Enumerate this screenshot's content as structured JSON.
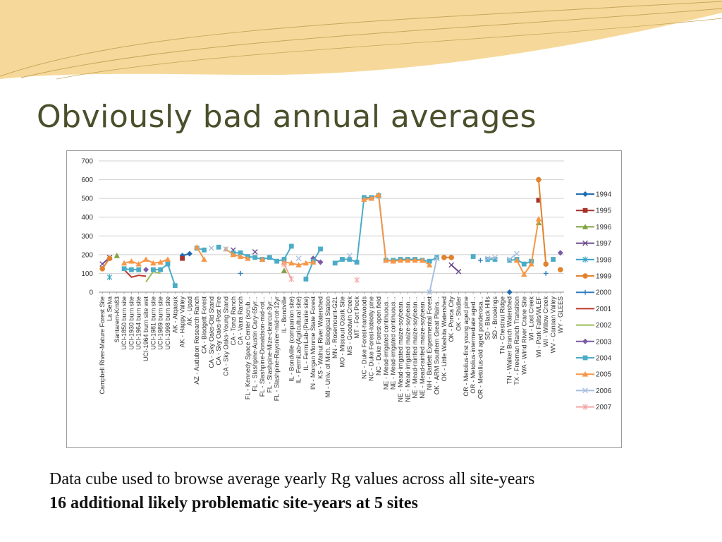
{
  "slide": {
    "title": "Obviously bad annual averages",
    "caption_line1": "Data cube used to browse average yearly Rg values across all site-years",
    "caption_line2": "16 additional likely problematic site-years at 5 sites"
  },
  "theme": {
    "title_color": "#4b4f2b",
    "deco_fill": "#f6d99a",
    "deco_line": "#c9a65a"
  },
  "chart_data": {
    "type": "line",
    "ylim": [
      0,
      700
    ],
    "yticks": [
      0,
      100,
      200,
      300,
      400,
      500,
      600,
      700
    ],
    "grid": true,
    "legend_position": "right",
    "categories": [
      "Campbell River-Mature Forest Site",
      "La Selva",
      "Santarem-Km83",
      "UCI-1850 burn site",
      "UCI-1930 burn site",
      "UCI-1964 burn site",
      "UCI-1964 burn site wet",
      "UCI-1981 burn site",
      "UCI-1989 burn site",
      "UCI-1998 burn site",
      "AK - Atqasuk",
      "AK - Happy Valley",
      "AK - Upad",
      "AZ - Audubon Research Ranch",
      "CA - Blodgett Forest",
      "CA - Sky Oaks-Old Stand",
      "CA - Sky Oaks-Post Fire",
      "CA - Sky Oaks-Young Stand",
      "CA - Tonzi Ranch",
      "CA - Vaira Ranch",
      "FL - Kennedy Space Center (scrub...",
      "FL - Slashpine-Austin Cary-65yr...",
      "FL - Slashpine-Donaldson-mid-rot...",
      "FL - Slashpine-Mize-clearcut-3yr...",
      "FL - Slashpine-Rayonier-mid-rot-12yr",
      "IL - Bondville",
      "IL - Bondville (companion site)",
      "IL - FermiLab-(Agricultural site)",
      "IL - FermiLab-(Prairie site)",
      "IN - Morgan Monroe State Forest",
      "KS - Walnut River Watershed",
      "MI - Univ. of Mich. Biological Station",
      "MN - Rosemount-G21",
      "MO - Missouri Ozark Site",
      "MS - Goodwin Creek",
      "MT - Fort Peck",
      "NC - Duke Forest-hardwoods",
      "NC - Duke Forest-loblolly pine",
      "NC - Duke Forest-open field",
      "NE - Mead-irrigated continuous...",
      "NE - Mead-irrigated continuous...",
      "NE - Mead-irrigated maize-soybean...",
      "NE - Mead-irrigated maize-soybean...",
      "NE - Mead-rainfed maize-soybean...",
      "NE - Mead-rainfed maize-soybean...",
      "NH - Bartlett Experimental Forest",
      "OK - ARM Southern Great Plains...",
      "OK - Little Washita Watershed",
      "OK - Ponca City",
      "OK - Shidler",
      "OR - Metolius-first young aged pine",
      "OR - Metolius-intermediate aged...",
      "OR - Metolius-old aged ponderosa...",
      "SD - Black Hills",
      "SD - Brookings",
      "TN - Chestnut Ridge",
      "TN - Walker Branch Watershed",
      "TX - Freeman Ranch Transition",
      "WA - Wind River Crane Site",
      "WI - Lost Creek",
      "WI - Park Falls/WLEF",
      "WI - Willow Creek",
      "WV - Canaan Valley",
      "WY - GLEES"
    ],
    "series": [
      {
        "name": "1994",
        "color": "#1f6cb0",
        "marker": "diamond",
        "values": [
          null,
          null,
          null,
          null,
          null,
          null,
          null,
          null,
          null,
          null,
          null,
          195,
          205,
          null,
          null,
          null,
          null,
          null,
          null,
          null,
          null,
          null,
          null,
          null,
          null,
          null,
          null,
          null,
          null,
          null,
          null,
          null,
          null,
          null,
          null,
          null,
          null,
          null,
          null,
          null,
          null,
          null,
          null,
          null,
          null,
          null,
          null,
          null,
          null,
          null,
          null,
          null,
          null,
          null,
          null,
          null,
          0,
          null,
          null,
          null,
          null,
          null,
          null,
          null
        ]
      },
      {
        "name": "1995",
        "color": "#a6322e",
        "marker": "square",
        "values": [
          null,
          null,
          null,
          null,
          null,
          null,
          null,
          null,
          null,
          null,
          null,
          180,
          null,
          null,
          null,
          null,
          null,
          null,
          null,
          null,
          null,
          null,
          null,
          null,
          null,
          null,
          null,
          null,
          null,
          null,
          null,
          null,
          null,
          null,
          null,
          null,
          null,
          null,
          null,
          null,
          null,
          null,
          null,
          null,
          null,
          null,
          null,
          null,
          null,
          null,
          null,
          null,
          null,
          null,
          null,
          null,
          null,
          null,
          null,
          null,
          490,
          null,
          null,
          null
        ]
      },
      {
        "name": "1996",
        "color": "#7fa33f",
        "marker": "triangle",
        "values": [
          null,
          null,
          195,
          null,
          null,
          null,
          null,
          null,
          null,
          null,
          null,
          null,
          null,
          null,
          null,
          null,
          null,
          null,
          null,
          null,
          null,
          null,
          null,
          null,
          null,
          115,
          null,
          null,
          null,
          null,
          null,
          null,
          null,
          null,
          null,
          null,
          null,
          null,
          null,
          null,
          null,
          null,
          null,
          null,
          null,
          null,
          null,
          null,
          null,
          null,
          null,
          null,
          null,
          null,
          null,
          null,
          null,
          null,
          null,
          null,
          370,
          null,
          null,
          null
        ]
      },
      {
        "name": "1997",
        "color": "#6b4a8a",
        "marker": "x",
        "values": [
          150,
          185,
          null,
          null,
          null,
          null,
          null,
          null,
          null,
          null,
          null,
          null,
          null,
          null,
          null,
          null,
          null,
          null,
          225,
          null,
          null,
          215,
          null,
          null,
          null,
          null,
          null,
          null,
          null,
          null,
          null,
          null,
          null,
          null,
          null,
          null,
          null,
          null,
          null,
          null,
          null,
          null,
          null,
          null,
          null,
          null,
          null,
          null,
          145,
          110,
          null,
          null,
          null,
          null,
          null,
          null,
          null,
          null,
          null,
          null,
          null,
          null,
          null,
          null
        ]
      },
      {
        "name": "1998",
        "color": "#3aa3c4",
        "marker": "star",
        "values": [
          null,
          80,
          null,
          null,
          null,
          null,
          null,
          null,
          null,
          null,
          null,
          null,
          null,
          null,
          null,
          null,
          null,
          null,
          null,
          null,
          null,
          null,
          null,
          null,
          null,
          null,
          null,
          null,
          null,
          null,
          null,
          null,
          null,
          null,
          null,
          null,
          null,
          null,
          null,
          null,
          null,
          null,
          null,
          null,
          null,
          null,
          null,
          null,
          null,
          null,
          null,
          null,
          null,
          null,
          null,
          null,
          null,
          null,
          null,
          null,
          null,
          null,
          null,
          null
        ]
      },
      {
        "name": "1999",
        "color": "#e1832e",
        "marker": "circle",
        "values": [
          125,
          180,
          null,
          null,
          null,
          null,
          null,
          null,
          null,
          null,
          null,
          null,
          null,
          null,
          null,
          null,
          null,
          null,
          null,
          null,
          null,
          null,
          null,
          null,
          null,
          null,
          null,
          null,
          null,
          null,
          null,
          null,
          null,
          null,
          null,
          null,
          null,
          null,
          null,
          null,
          null,
          null,
          null,
          null,
          null,
          null,
          null,
          185,
          185,
          null,
          null,
          null,
          null,
          null,
          null,
          null,
          null,
          null,
          null,
          null,
          600,
          150,
          null,
          120
        ]
      },
      {
        "name": "2000",
        "color": "#2f7dc1",
        "marker": "plus",
        "values": [
          null,
          null,
          null,
          null,
          null,
          null,
          null,
          null,
          null,
          null,
          null,
          null,
          null,
          null,
          null,
          null,
          null,
          null,
          null,
          100,
          null,
          null,
          null,
          null,
          null,
          null,
          null,
          null,
          null,
          null,
          null,
          null,
          null,
          null,
          null,
          null,
          null,
          null,
          null,
          null,
          null,
          null,
          null,
          null,
          null,
          null,
          null,
          null,
          null,
          null,
          null,
          null,
          170,
          null,
          null,
          null,
          null,
          null,
          null,
          null,
          null,
          100,
          null,
          null
        ]
      },
      {
        "name": "2001",
        "color": "#c0392b",
        "marker": "none",
        "values": [
          null,
          null,
          null,
          120,
          80,
          90,
          85,
          null,
          null,
          null,
          null,
          null,
          null,
          null,
          null,
          null,
          null,
          null,
          null,
          null,
          null,
          null,
          null,
          null,
          null,
          null,
          null,
          null,
          null,
          null,
          null,
          null,
          null,
          null,
          null,
          null,
          null,
          null,
          null,
          null,
          null,
          null,
          null,
          null,
          null,
          null,
          null,
          null,
          null,
          null,
          null,
          null,
          null,
          null,
          null,
          null,
          null,
          null,
          null,
          null,
          null,
          null,
          null,
          null
        ]
      },
      {
        "name": "2002",
        "color": "#9bbb59",
        "marker": "none",
        "values": [
          80,
          null,
          null,
          null,
          null,
          null,
          55,
          110,
          100,
          null,
          null,
          null,
          null,
          null,
          null,
          null,
          null,
          null,
          null,
          null,
          null,
          null,
          null,
          null,
          null,
          null,
          null,
          null,
          null,
          null,
          null,
          null,
          null,
          null,
          null,
          null,
          null,
          null,
          null,
          null,
          null,
          null,
          null,
          null,
          null,
          null,
          95,
          null,
          null,
          null,
          null,
          null,
          null,
          null,
          null,
          null,
          null,
          null,
          null,
          185,
          null,
          null,
          null,
          200
        ]
      },
      {
        "name": "2003",
        "color": "#7b5aa6",
        "marker": "diamond",
        "values": [
          null,
          null,
          null,
          null,
          null,
          null,
          120,
          null,
          null,
          null,
          null,
          null,
          null,
          null,
          null,
          null,
          null,
          null,
          null,
          null,
          null,
          null,
          null,
          null,
          null,
          null,
          null,
          null,
          null,
          180,
          160,
          null,
          null,
          null,
          null,
          null,
          null,
          null,
          null,
          null,
          null,
          null,
          null,
          null,
          null,
          null,
          null,
          null,
          null,
          null,
          null,
          null,
          null,
          null,
          null,
          null,
          null,
          null,
          null,
          null,
          null,
          null,
          null,
          210
        ]
      },
      {
        "name": "2004",
        "color": "#4bacc6",
        "marker": "square",
        "values": [
          null,
          null,
          null,
          125,
          120,
          120,
          null,
          120,
          120,
          150,
          35,
          null,
          null,
          235,
          225,
          null,
          240,
          null,
          210,
          210,
          190,
          185,
          175,
          185,
          165,
          175,
          245,
          null,
          70,
          165,
          230,
          null,
          155,
          175,
          175,
          160,
          505,
          505,
          515,
          170,
          170,
          175,
          175,
          175,
          170,
          165,
          185,
          null,
          null,
          null,
          null,
          190,
          null,
          175,
          175,
          null,
          170,
          175,
          150,
          165,
          null,
          null,
          175,
          null
        ]
      },
      {
        "name": "2005",
        "color": "#f79646",
        "marker": "triangle",
        "values": [
          null,
          null,
          null,
          155,
          165,
          150,
          175,
          155,
          160,
          175,
          null,
          null,
          null,
          240,
          175,
          null,
          null,
          230,
          200,
          190,
          180,
          null,
          175,
          null,
          null,
          160,
          155,
          145,
          155,
          160,
          null,
          null,
          null,
          null,
          null,
          null,
          495,
          500,
          520,
          170,
          165,
          170,
          170,
          170,
          170,
          145,
          null,
          null,
          null,
          null,
          null,
          null,
          null,
          null,
          null,
          null,
          null,
          170,
          95,
          150,
          390,
          null,
          null,
          null
        ]
      },
      {
        "name": "2006",
        "color": "#a8c0e0",
        "marker": "x",
        "values": [
          null,
          null,
          null,
          null,
          null,
          null,
          null,
          null,
          null,
          null,
          null,
          null,
          null,
          null,
          null,
          235,
          null,
          230,
          null,
          null,
          null,
          null,
          null,
          null,
          null,
          null,
          null,
          180,
          null,
          null,
          null,
          null,
          null,
          null,
          195,
          null,
          null,
          null,
          null,
          null,
          null,
          null,
          null,
          null,
          null,
          0,
          180,
          null,
          null,
          null,
          null,
          null,
          null,
          180,
          185,
          null,
          175,
          205,
          null,
          null,
          null,
          null,
          null,
          null
        ]
      },
      {
        "name": "2007",
        "color": "#f4a7a7",
        "marker": "star",
        "values": [
          null,
          null,
          null,
          null,
          null,
          null,
          null,
          null,
          null,
          null,
          null,
          null,
          null,
          null,
          null,
          null,
          null,
          null,
          null,
          null,
          null,
          null,
          null,
          null,
          null,
          150,
          70,
          null,
          null,
          null,
          null,
          null,
          null,
          null,
          null,
          65,
          null,
          null,
          null,
          null,
          null,
          null,
          null,
          null,
          null,
          null,
          null,
          null,
          null,
          null,
          null,
          null,
          null,
          null,
          null,
          null,
          null,
          null,
          null,
          null,
          null,
          null,
          null,
          null
        ]
      }
    ]
  }
}
